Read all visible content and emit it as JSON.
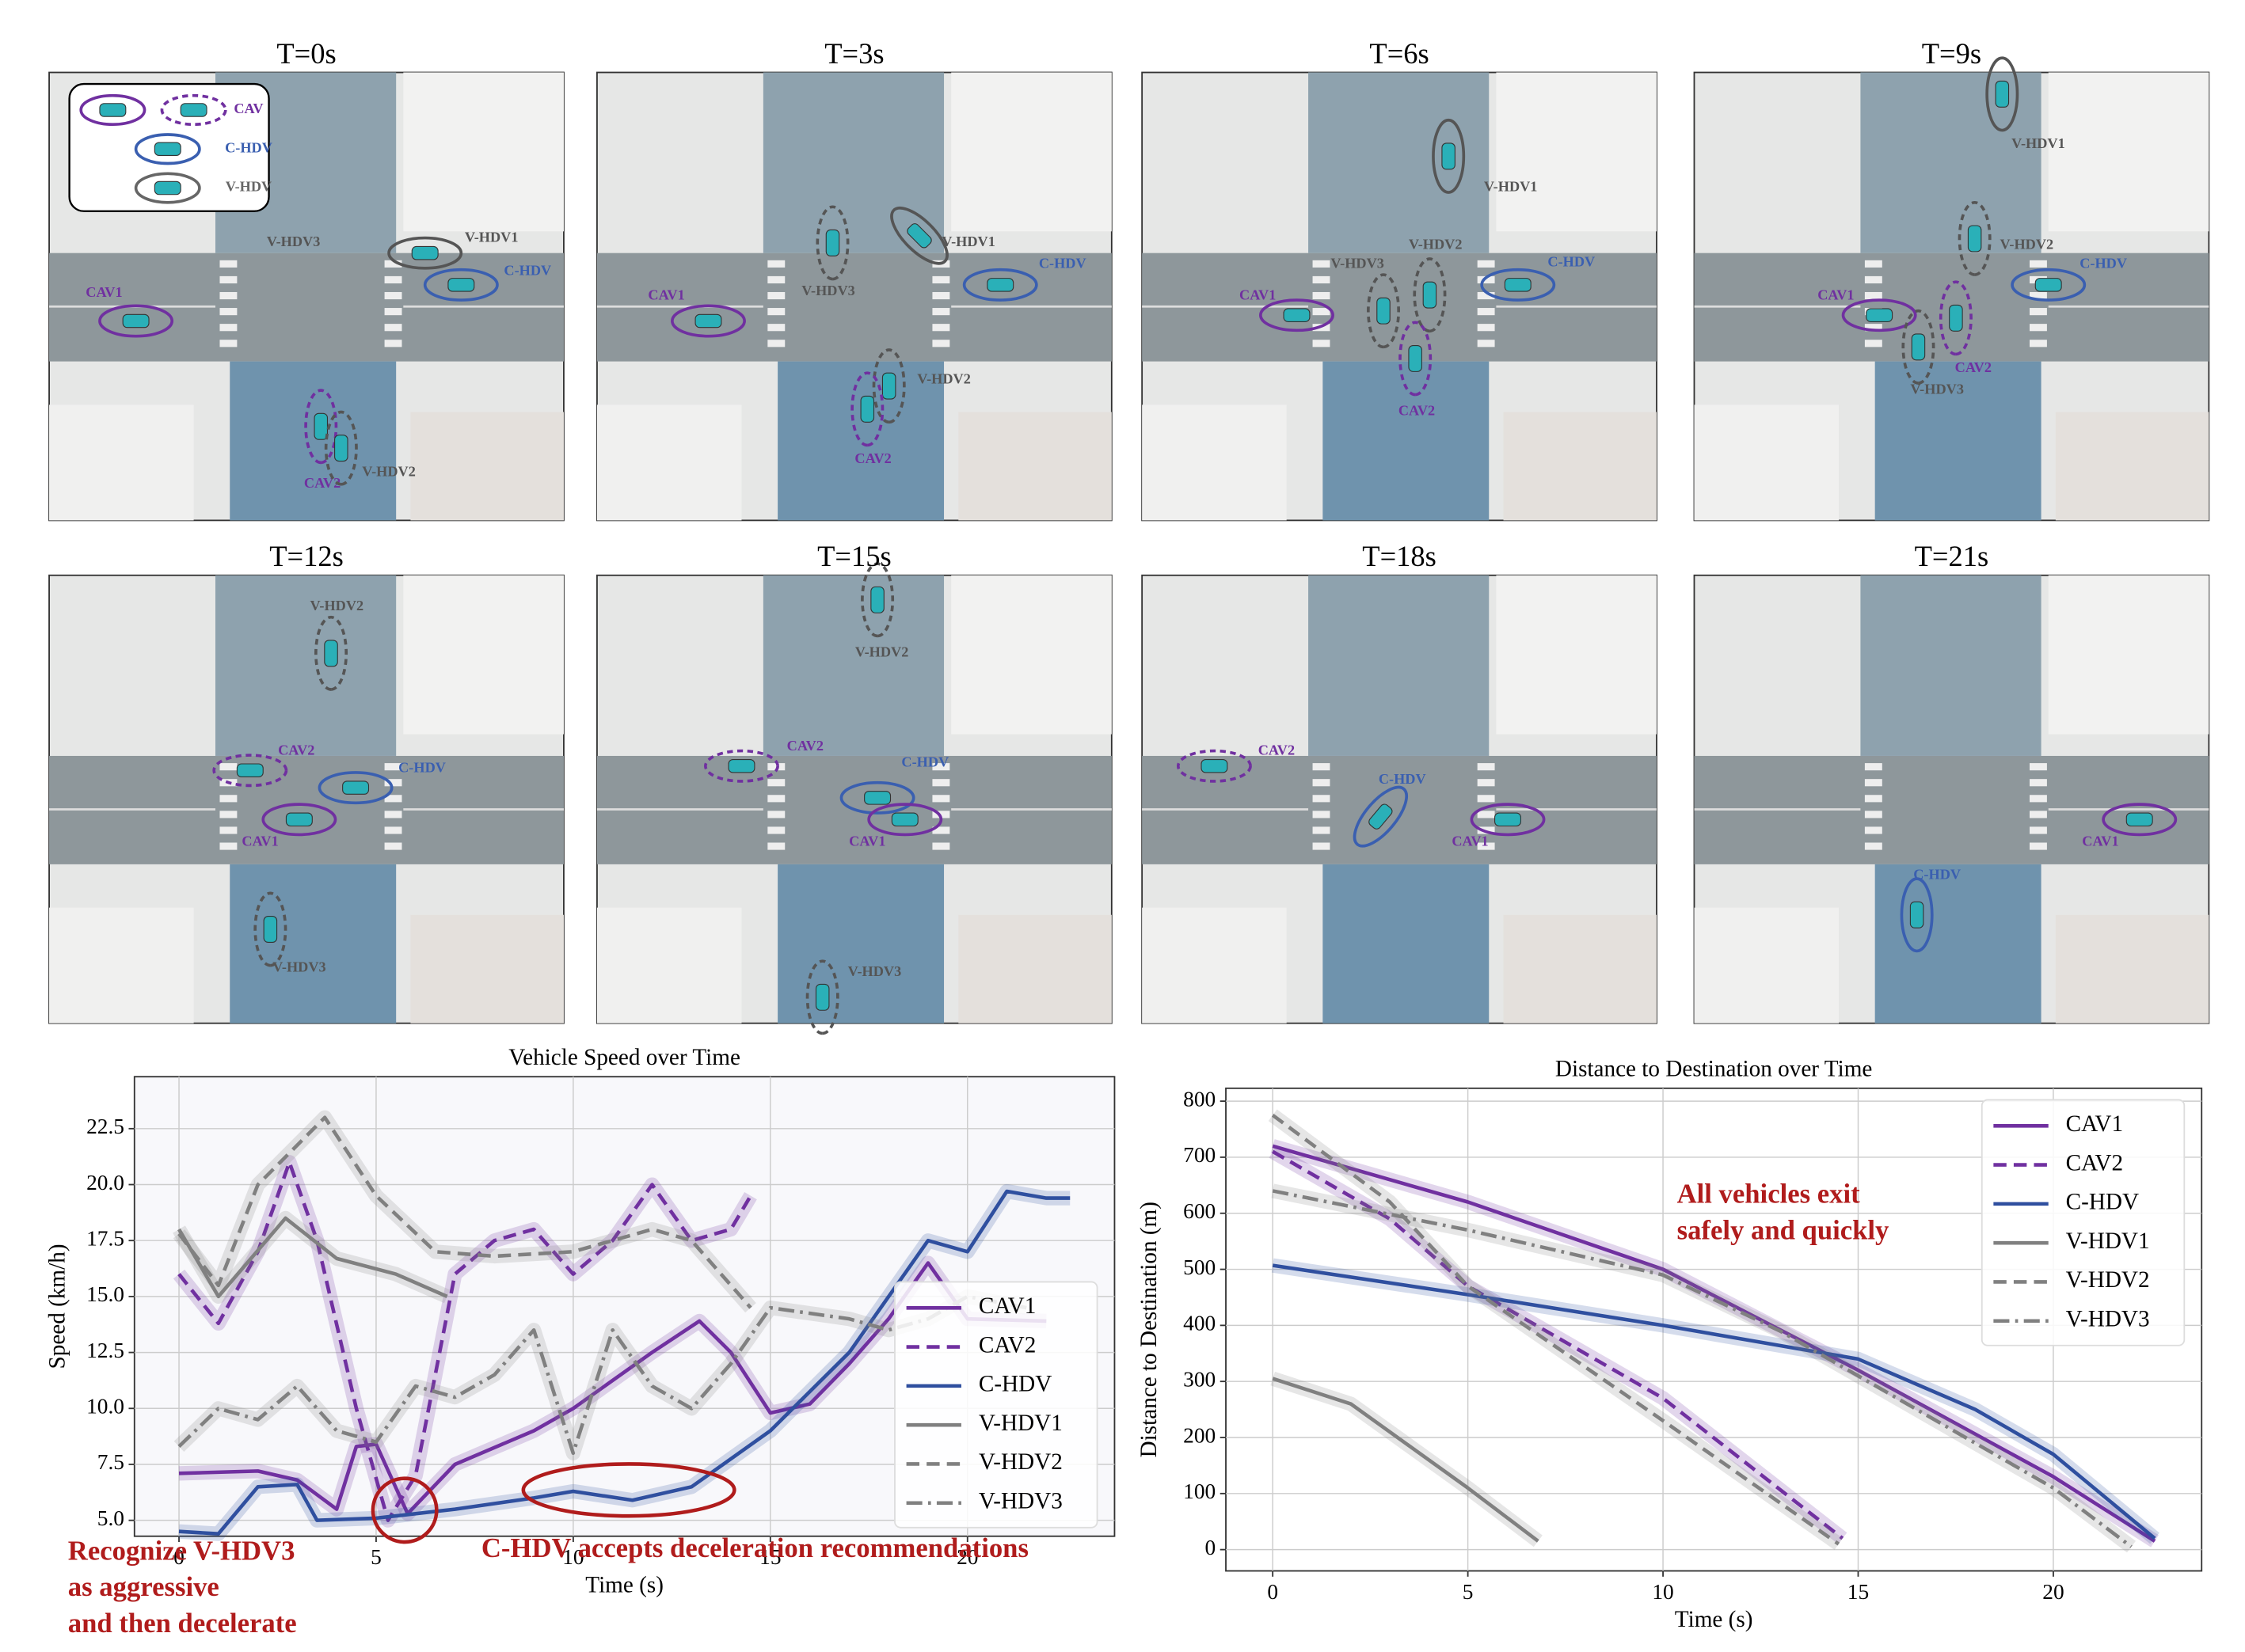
{
  "panels": [
    {
      "title": "T=0s",
      "labels": [
        "V-HDV1",
        "C-HDV",
        "V-HDV3",
        "CAV1",
        "CAV2",
        "V-HDV2"
      ]
    },
    {
      "title": "T=3s",
      "labels": [
        "V-HDV1",
        "C-HDV",
        "V-HDV3",
        "CAV1",
        "V-HDV2",
        "CAV2"
      ]
    },
    {
      "title": "T=6s",
      "labels": [
        "V-HDV1",
        "V-HDV2",
        "V-HDV3",
        "C-HDV",
        "CAV1",
        "CAV2"
      ]
    },
    {
      "title": "T=9s",
      "labels": [
        "V-HDV1",
        "V-HDV2",
        "C-HDV",
        "CAV1",
        "CAV2",
        "V-HDV3"
      ]
    },
    {
      "title": "T=12s",
      "labels": [
        "V-HDV2",
        "CAV2",
        "C-HDV",
        "CAV1",
        "V-HDV3"
      ]
    },
    {
      "title": "T=15s",
      "labels": [
        "V-HDV2",
        "CAV2",
        "C-HDV",
        "CAV1",
        "V-HDV3"
      ]
    },
    {
      "title": "T=18s",
      "labels": [
        "CAV2",
        "C-HDV",
        "CAV1"
      ]
    },
    {
      "title": "T=21s",
      "labels": [
        "CAV1",
        "C-HDV"
      ]
    }
  ],
  "legend": {
    "labels": [
      "CAV",
      "C-HDV",
      "V-HDV"
    ]
  },
  "chart_data": [
    {
      "type": "line",
      "title": "Vehicle Speed over Time",
      "x_label": "Time (s)",
      "y_label": "Speed (km/h)",
      "xlim": [
        -1.13,
        23.73
      ],
      "ylim": [
        4.29,
        24.82
      ],
      "xticks": [
        0,
        5,
        10,
        15,
        20
      ],
      "yticks": [
        {
          "value": 5,
          "label": "5.0"
        },
        {
          "value": 7.5,
          "label": "7.5"
        },
        {
          "value": 10,
          "label": "10.0"
        },
        {
          "value": 12.5,
          "label": "12.5"
        },
        {
          "value": 15,
          "label": "15.0"
        },
        {
          "value": 17.5,
          "label": "17.5"
        },
        {
          "value": 20,
          "label": "20.0"
        },
        {
          "value": 22.5,
          "label": "22.5"
        }
      ],
      "grid": true,
      "legend": "lower right",
      "annotations": [
        [
          "Recognize V-HDV3",
          "as aggressive",
          "and then decelerate"
        ],
        [
          "C-HDV accepts deceleration recommendations"
        ]
      ],
      "series": [
        {
          "name": "CAV1",
          "color": "#7030a0",
          "dash": "solid",
          "x": [
            0,
            2,
            3,
            4,
            4.5,
            5,
            5.8,
            7,
            9,
            10,
            12,
            13.2,
            14,
            15,
            16,
            17,
            18,
            19,
            20,
            22
          ],
          "values": [
            7.1,
            7.2,
            6.8,
            5.5,
            8.3,
            8.4,
            5.3,
            7.5,
            9,
            10,
            12.5,
            13.9,
            12.5,
            9.8,
            10.2,
            12,
            14,
            16.5,
            14,
            13.9
          ]
        },
        {
          "name": "CAV2",
          "color": "#7030a0",
          "dash": "dashed",
          "x": [
            0,
            1,
            2,
            2.8,
            3.5,
            4.5,
            5.3,
            6,
            7,
            8,
            9,
            10,
            11,
            12,
            13,
            14,
            14.5
          ],
          "values": [
            16,
            13.8,
            17,
            21,
            17.5,
            10,
            5,
            7,
            16,
            17.5,
            18,
            16,
            17.5,
            20,
            17.5,
            18,
            19.5
          ]
        },
        {
          "name": "C-HDV",
          "color": "#2f4f9f",
          "dash": "solid",
          "x": [
            0,
            1,
            2,
            3,
            3.5,
            5,
            7,
            9,
            10,
            11.5,
            13,
            15,
            17,
            19,
            20,
            21,
            22,
            22.6
          ],
          "values": [
            4.5,
            4.4,
            6.5,
            6.6,
            5,
            5.1,
            5.5,
            6,
            6.3,
            5.9,
            6.5,
            9,
            12.5,
            17.5,
            17,
            19.7,
            19.4,
            19.4
          ]
        },
        {
          "name": "V-HDV1",
          "color": "#808080",
          "dash": "solid",
          "x": [
            0,
            1,
            2.7,
            4,
            5.5,
            6.8
          ],
          "values": [
            18,
            15,
            18.5,
            16.7,
            16,
            15
          ]
        },
        {
          "name": "V-HDV2",
          "color": "#808080",
          "dash": "dashed",
          "x": [
            0,
            1,
            2,
            3.7,
            5,
            6.5,
            8,
            10,
            12,
            13,
            14.5
          ],
          "values": [
            17.8,
            15.5,
            20,
            23,
            19.5,
            17,
            16.8,
            17,
            18,
            17.5,
            14.5
          ]
        },
        {
          "name": "V-HDV3",
          "color": "#808080",
          "dash": "dashdot",
          "x": [
            0,
            1,
            2,
            3,
            4,
            5,
            6,
            7,
            8,
            9,
            10,
            11,
            12,
            13,
            14,
            15,
            17,
            18,
            19,
            20,
            21.5
          ],
          "values": [
            8.3,
            10,
            9.5,
            11,
            9,
            8.5,
            11,
            10.5,
            11.5,
            13.5,
            8,
            13.5,
            11,
            10,
            12,
            14.5,
            14,
            13.5,
            14,
            15,
            14.5
          ]
        }
      ]
    },
    {
      "type": "line",
      "title": "Distance to Destination over Time",
      "x_label": "Time (s)",
      "y_label": "Distance to Destination (m)",
      "xlim": [
        -1.2,
        23.8
      ],
      "ylim": [
        -38,
        823
      ],
      "xticks": [
        0,
        5,
        10,
        15,
        20
      ],
      "yticks": [
        0,
        100,
        200,
        300,
        400,
        500,
        600,
        700,
        800
      ],
      "grid": true,
      "legend": "upper right",
      "annotations": [
        [
          "All vehicles exit",
          "safely and quickly"
        ]
      ],
      "series": [
        {
          "name": "CAV1",
          "color": "#7030a0",
          "dash": "solid",
          "x": [
            0,
            5,
            10,
            15,
            20,
            22.6
          ],
          "values": [
            720,
            620,
            500,
            320,
            130,
            15
          ]
        },
        {
          "name": "CAV2",
          "color": "#7030a0",
          "dash": "dashed",
          "x": [
            0,
            3,
            5,
            10,
            14.6
          ],
          "values": [
            710,
            590,
            470,
            270,
            20
          ]
        },
        {
          "name": "C-HDV",
          "color": "#2f4f9f",
          "dash": "solid",
          "x": [
            0,
            5,
            10,
            15,
            18,
            20,
            22.6
          ],
          "values": [
            507,
            455,
            400,
            340,
            250,
            170,
            20
          ]
        },
        {
          "name": "V-HDV1",
          "color": "#808080",
          "dash": "solid",
          "x": [
            0,
            2,
            5,
            6.8
          ],
          "values": [
            305,
            260,
            110,
            15
          ]
        },
        {
          "name": "V-HDV2",
          "color": "#808080",
          "dash": "dashed",
          "x": [
            0,
            3,
            5,
            10,
            14.5
          ],
          "values": [
            775,
            620,
            470,
            230,
            10
          ]
        },
        {
          "name": "V-HDV3",
          "color": "#808080",
          "dash": "dashdot",
          "x": [
            0,
            5,
            10,
            13,
            15,
            20,
            22
          ],
          "values": [
            640,
            570,
            490,
            390,
            310,
            110,
            5
          ]
        }
      ]
    }
  ]
}
